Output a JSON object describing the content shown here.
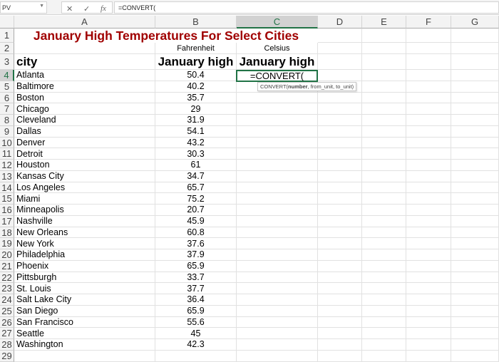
{
  "formula_bar": {
    "name_box": "PV",
    "formula": "=CONVERT(",
    "cancel_icon": "✕",
    "enter_icon": "✓",
    "fx_icon": "fx"
  },
  "columns": [
    "A",
    "B",
    "C",
    "D",
    "E",
    "F",
    "G"
  ],
  "selected_column": "C",
  "selected_row": 4,
  "title": "January High Temperatures For Select Cities",
  "b2": "Fahrenheit",
  "c2": "Celsius",
  "a3": "city",
  "b3": "January high",
  "c3": "January high",
  "active_cell": {
    "ref": "C4",
    "value": "=CONVERT("
  },
  "tooltip": {
    "fn": "CONVERT(",
    "arg1": "number",
    "rest": ", from_unit, to_unit)"
  },
  "rows": [
    [
      "Atlanta",
      "50.4"
    ],
    [
      "Baltimore",
      "40.2"
    ],
    [
      "Boston",
      "35.7"
    ],
    [
      "Chicago",
      "29"
    ],
    [
      "Cleveland",
      "31.9"
    ],
    [
      "Dallas",
      "54.1"
    ],
    [
      "Denver",
      "43.2"
    ],
    [
      "Detroit",
      "30.3"
    ],
    [
      "Houston",
      "61"
    ],
    [
      "Kansas City",
      "34.7"
    ],
    [
      "Los Angeles",
      "65.7"
    ],
    [
      "Miami",
      "75.2"
    ],
    [
      "Minneapolis",
      "20.7"
    ],
    [
      "Nashville",
      "45.9"
    ],
    [
      "New Orleans",
      "60.8"
    ],
    [
      "New York",
      "37.6"
    ],
    [
      "Philadelphia",
      "37.9"
    ],
    [
      "Phoenix",
      "65.9"
    ],
    [
      "Pittsburgh",
      "33.7"
    ],
    [
      "St. Louis",
      "37.7"
    ],
    [
      "Salt Lake City",
      "36.4"
    ],
    [
      "San Diego",
      "65.9"
    ],
    [
      "San Francisco",
      "55.6"
    ],
    [
      "Seattle",
      "45"
    ],
    [
      "Washington",
      "42.3"
    ]
  ],
  "colors": {
    "title": "#a00000",
    "selection": "#217346"
  }
}
